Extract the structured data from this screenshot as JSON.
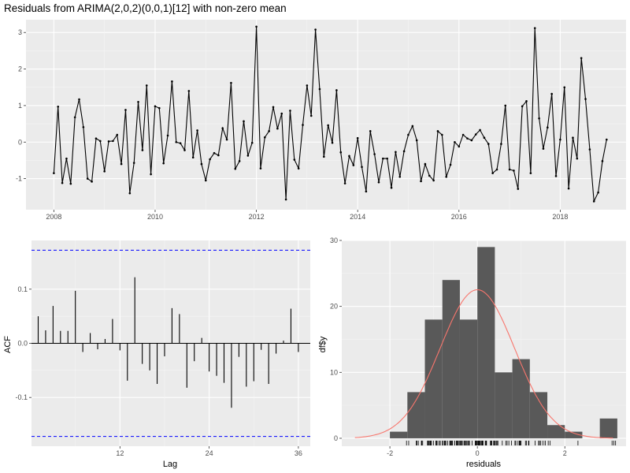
{
  "chart_data": [
    {
      "type": "line",
      "title": "Residuals from ARIMA(2,0,2)(0,0,1)[12] with non-zero mean",
      "xlabel": "",
      "ylabel": "",
      "x_start": 2008.0,
      "x_step": 0.08333,
      "xlim": [
        2007.45,
        2019.3
      ],
      "ylim": [
        -1.85,
        3.35
      ],
      "xticks": [
        2008,
        2010,
        2012,
        2014,
        2016,
        2018
      ],
      "yticks": [
        -1,
        0,
        1,
        2,
        3
      ],
      "grid": true,
      "line_color": "#000000",
      "values": [
        -0.85,
        0.97,
        -1.12,
        -0.45,
        -1.14,
        0.68,
        1.17,
        0.41,
        -1.0,
        -1.08,
        0.1,
        0.03,
        -0.8,
        0.02,
        0.03,
        0.2,
        -0.6,
        0.88,
        -1.4,
        -0.57,
        1.1,
        -0.22,
        1.55,
        -0.88,
        0.98,
        0.93,
        -0.58,
        0.18,
        1.66,
        0.0,
        -0.03,
        -0.22,
        1.4,
        -0.42,
        0.32,
        -0.6,
        -1.05,
        -0.47,
        -0.3,
        -0.36,
        0.38,
        0.07,
        1.62,
        -0.73,
        -0.52,
        0.57,
        -0.37,
        -0.02,
        3.16,
        -0.72,
        0.13,
        0.3,
        0.96,
        0.37,
        0.78,
        -1.57,
        0.86,
        -0.48,
        -0.72,
        0.47,
        1.55,
        0.72,
        3.08,
        1.45,
        -0.4,
        0.46,
        -0.02,
        1.42,
        -0.28,
        -1.13,
        -0.38,
        -0.63,
        0.11,
        -0.68,
        -1.35,
        0.3,
        -0.33,
        -1.1,
        -0.45,
        -0.45,
        -1.25,
        -0.27,
        -0.95,
        -0.25,
        0.2,
        0.44,
        0.05,
        -1.07,
        -0.6,
        -0.92,
        -1.05,
        0.3,
        0.2,
        -0.95,
        -0.62,
        0.0,
        -0.12,
        0.2,
        0.1,
        0.05,
        0.21,
        0.33,
        0.12,
        -0.05,
        -0.85,
        -0.75,
        -0.05,
        1.0,
        -0.75,
        -0.78,
        -1.28,
        0.98,
        1.12,
        -0.85,
        3.12,
        0.65,
        -0.18,
        0.4,
        1.32,
        -0.93,
        0.07,
        1.5,
        -1.27,
        0.12,
        -0.45,
        2.3,
        1.18,
        -0.2,
        -1.62,
        -1.38,
        -0.52,
        0.07
      ]
    },
    {
      "type": "bar",
      "subtype": "acf",
      "title": "",
      "xlabel": "Lag",
      "ylabel": "ACF",
      "lags": [
        1,
        2,
        3,
        4,
        5,
        6,
        7,
        8,
        9,
        10,
        11,
        12,
        13,
        14,
        15,
        16,
        17,
        18,
        19,
        20,
        21,
        22,
        23,
        24,
        25,
        26,
        27,
        28,
        29,
        30,
        31,
        32,
        33,
        34,
        35,
        36
      ],
      "values": [
        0.05,
        0.024,
        0.069,
        0.023,
        0.023,
        0.097,
        -0.016,
        0.019,
        -0.011,
        0.008,
        0.045,
        -0.013,
        -0.069,
        0.122,
        -0.038,
        -0.05,
        -0.075,
        -0.024,
        0.065,
        0.054,
        -0.082,
        -0.033,
        0.01,
        -0.052,
        -0.06,
        -0.073,
        -0.119,
        -0.025,
        -0.08,
        -0.07,
        -0.012,
        -0.075,
        -0.019,
        0.005,
        0.064,
        -0.016
      ],
      "confidence_bounds": [
        -0.172,
        0.172
      ],
      "bound_color": "#0000ff",
      "xlim": [
        0.1,
        37.6
      ],
      "ylim": [
        -0.19,
        0.19
      ],
      "xticks": [
        12,
        24,
        36
      ],
      "yticks": [
        -0.1,
        0.0,
        0.1
      ],
      "ytick_labels": [
        "-0.1",
        "0.0",
        "0.1"
      ],
      "grid": true
    },
    {
      "type": "bar",
      "subtype": "histogram",
      "title": "",
      "xlabel": "residuals",
      "ylabel": "df$y",
      "bin_edges": [
        -2.0,
        -1.6,
        -1.2,
        -0.8,
        -0.4,
        0.0,
        0.4,
        0.8,
        1.2,
        1.6,
        2.0,
        2.4,
        2.8,
        3.2
      ],
      "counts": [
        1,
        7,
        18,
        24,
        18,
        29,
        10,
        12,
        7,
        2,
        1,
        0,
        3
      ],
      "bar_color": "#595959",
      "density_curve": {
        "color": "#f8766d",
        "mean": 0.0,
        "sd": 0.85,
        "scale": 48.0,
        "x_range": [
          -2.8,
          3.1
        ]
      },
      "rug": true,
      "xlim": [
        -3.1,
        3.4
      ],
      "ylim": [
        -1.2,
        30.0
      ],
      "xticks": [
        -2,
        0,
        2
      ],
      "yticks": [
        0,
        10,
        20,
        30
      ],
      "grid": true
    }
  ]
}
